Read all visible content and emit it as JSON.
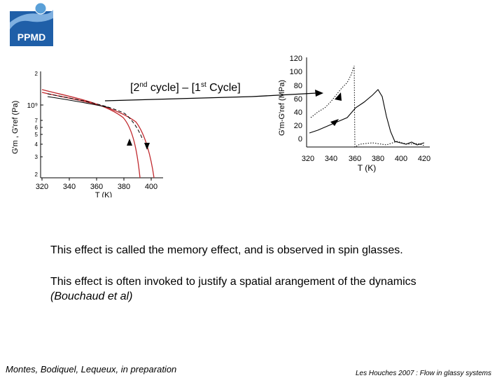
{
  "logo": {
    "text": "PPMD",
    "colors": {
      "blue": "#1f5fa8",
      "light": "#7fb0e0"
    }
  },
  "caption": {
    "part1": "[2",
    "sup1": "nd",
    "part2": " cycle] – [1",
    "sup2": "st",
    "part3": " Cycle]"
  },
  "left_plot": {
    "ylabel": "G'm , G'ref  (Pa)",
    "xlabel": "T (K)",
    "ytick_labels": [
      "2",
      "10⁹",
      "7",
      "6",
      "5",
      "4",
      "3",
      "2"
    ],
    "xtick_labels": [
      "320",
      "340",
      "360",
      "380",
      "400"
    ]
  },
  "right_plot": {
    "ylabel": "G'm-G'ref (MPa)",
    "xlabel": "T (K)",
    "ytick_labels": [
      "120",
      "100",
      "80",
      "60",
      "40",
      "20",
      "0"
    ],
    "xtick_labels": [
      "320",
      "340",
      "360",
      "380",
      "400",
      "420"
    ]
  },
  "chart_data": [
    {
      "type": "line",
      "scale": "log-y",
      "xlim": [
        320,
        405
      ],
      "series": [
        {
          "values": [
            [
              320,
              2100000000.0
            ],
            [
              340,
              1750000000.0
            ],
            [
              360,
              1400000000.0
            ],
            [
              380,
              800000000.0
            ],
            [
              388,
              400000000.0
            ],
            [
              392,
              200000000.0
            ]
          ]
        },
        {
          "values": [
            [
              320,
              2000000000.0
            ],
            [
              340,
              1700000000.0
            ],
            [
              360,
              1350000000.0
            ],
            [
              385,
              800000000.0
            ],
            [
              396,
              400000000.0
            ],
            [
              402,
              200000000.0
            ]
          ]
        }
      ]
    },
    {
      "type": "line",
      "xlim": [
        320,
        420
      ],
      "ylim": [
        0,
        120
      ],
      "series": [
        {
          "values": [
            [
              330,
              35
            ],
            [
              340,
              45
            ],
            [
              350,
              60
            ],
            [
              355,
              75
            ],
            [
              358,
              85
            ],
            [
              360,
              105
            ],
            [
              361,
              0
            ],
            [
              380,
              4
            ],
            [
              390,
              1
            ],
            [
              400,
              2
            ],
            [
              405,
              0
            ]
          ]
        },
        {
          "values": [
            [
              330,
              14
            ],
            [
              340,
              20
            ],
            [
              350,
              28
            ],
            [
              360,
              45
            ],
            [
              370,
              60
            ],
            [
              378,
              75
            ],
            [
              382,
              55
            ],
            [
              388,
              10
            ],
            [
              392,
              2
            ],
            [
              405,
              0
            ]
          ]
        }
      ]
    }
  ],
  "text": {
    "p1": "This effect is called the memory effect, and is observed in spin glasses.",
    "p2": "This effect is often invoked to justify a spatial arangement of the dynamics",
    "p3": "(Bouchaud et al)",
    "credit": "Montes, Bodiquel, Lequeux, in preparation",
    "footer": "Les Houches 2007 : Flow in glassy systems"
  }
}
